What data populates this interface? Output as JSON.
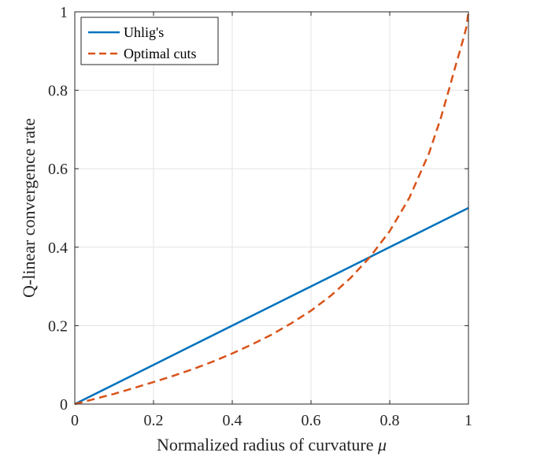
{
  "chart_data": {
    "type": "line",
    "xlabel": "Normalized radius of curvature",
    "xlabel_symbol": "μ",
    "ylabel": "Q-linear convergence rate",
    "xlim": [
      0,
      1
    ],
    "ylim": [
      0,
      1
    ],
    "xticks": [
      0,
      0.2,
      0.4,
      0.6,
      0.8,
      1
    ],
    "yticks": [
      0,
      0.2,
      0.4,
      0.6,
      0.8,
      1
    ],
    "xtick_labels": [
      "0",
      "0.2",
      "0.4",
      "0.6",
      "0.8",
      "1"
    ],
    "ytick_labels": [
      "0",
      "0.2",
      "0.4",
      "0.6",
      "0.8",
      "1"
    ],
    "grid": true,
    "legend_position": "top-left",
    "series": [
      {
        "name": "Uhlig's",
        "style": "solid",
        "color": "#0072BD",
        "x": [
          0,
          0.1,
          0.2,
          0.3,
          0.4,
          0.5,
          0.6,
          0.7,
          0.8,
          0.9,
          1.0
        ],
        "y": [
          0,
          0.05,
          0.1,
          0.15,
          0.2,
          0.25,
          0.3,
          0.35,
          0.4,
          0.45,
          0.5
        ]
      },
      {
        "name": "Optimal cuts",
        "style": "dashed",
        "color": "#D95319",
        "x": [
          0,
          0.05,
          0.1,
          0.15,
          0.2,
          0.25,
          0.3,
          0.35,
          0.4,
          0.45,
          0.5,
          0.55,
          0.6,
          0.65,
          0.7,
          0.75,
          0.8,
          0.85,
          0.9,
          0.93,
          0.95,
          0.97,
          0.98,
          0.99,
          0.995,
          1.0
        ],
        "y": [
          0,
          0.013,
          0.026,
          0.041,
          0.056,
          0.072,
          0.089,
          0.108,
          0.129,
          0.152,
          0.177,
          0.206,
          0.238,
          0.276,
          0.321,
          0.375,
          0.441,
          0.526,
          0.64,
          0.73,
          0.8,
          0.872,
          0.906,
          0.942,
          0.962,
          1.0
        ]
      }
    ]
  }
}
